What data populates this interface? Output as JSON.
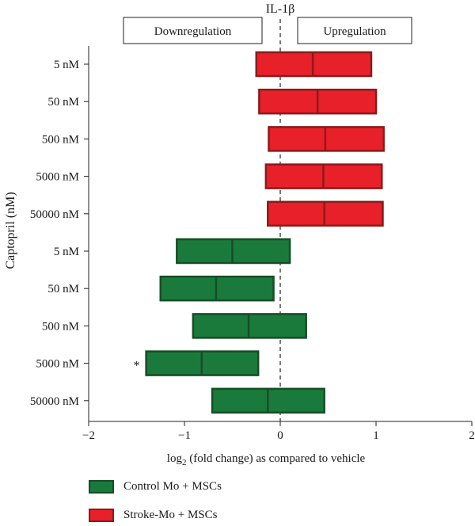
{
  "chart_data": {
    "type": "box",
    "title": "IL-1β",
    "xlabel_main": "log",
    "xlabel_sub": "2",
    "xlabel_rest": " (fold change) as compared to vehicle",
    "ylabel": "Captopril (nM)",
    "annotations": {
      "downregulation": "Downregulation",
      "upregulation": "Upregulation",
      "significance": "*"
    },
    "xlim": [
      -2,
      2
    ],
    "x_ticks": [
      -2,
      -1,
      0,
      1,
      2
    ],
    "x_tick_labels": [
      "−2",
      "−1",
      "0",
      "1",
      "2"
    ],
    "reference_line": 0,
    "categories": [
      "5 nM",
      "50 nM",
      "500 nM",
      "5000 nM",
      "50000 nM",
      "5 nM",
      "50 nM",
      "500 nM",
      "5000 nM",
      "50000 nM"
    ],
    "series": [
      {
        "name": "Stroke-Mo + MSCs",
        "color": "#e8202a",
        "edge": "#8c1a1a",
        "boxes": [
          {
            "category_index": 0,
            "min": -0.25,
            "median": 0.34,
            "max": 0.95
          },
          {
            "category_index": 1,
            "min": -0.22,
            "median": 0.39,
            "max": 1.0
          },
          {
            "category_index": 2,
            "min": -0.12,
            "median": 0.47,
            "max": 1.08
          },
          {
            "category_index": 3,
            "min": -0.15,
            "median": 0.45,
            "max": 1.06
          },
          {
            "category_index": 4,
            "min": -0.13,
            "median": 0.46,
            "max": 1.07
          }
        ]
      },
      {
        "name": "Control Mo + MSCs",
        "color": "#1a7a3c",
        "edge": "#174d26",
        "boxes": [
          {
            "category_index": 5,
            "min": -1.08,
            "median": -0.5,
            "max": 0.1
          },
          {
            "category_index": 6,
            "min": -1.25,
            "median": -0.67,
            "max": -0.07
          },
          {
            "category_index": 7,
            "min": -0.91,
            "median": -0.33,
            "max": 0.27
          },
          {
            "category_index": 8,
            "min": -1.4,
            "median": -0.82,
            "max": -0.23
          },
          {
            "category_index": 9,
            "min": -0.71,
            "median": -0.13,
            "max": 0.46
          }
        ]
      }
    ],
    "significant_category_index": 8,
    "legend": [
      {
        "label": "Control Mo + MSCs",
        "color": "#1a7a3c",
        "edge": "#174d26"
      },
      {
        "label": "Stroke-Mo + MSCs",
        "color": "#e8202a",
        "edge": "#8c1a1a"
      }
    ]
  }
}
